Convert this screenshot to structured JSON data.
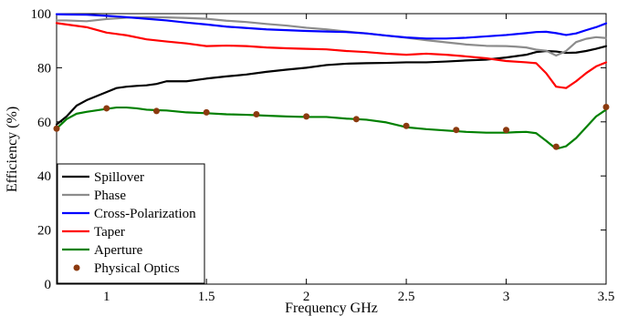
{
  "chart_data": {
    "type": "line",
    "xlabel": "Frequency GHz",
    "ylabel": "Efficiency (%)",
    "xlim": [
      0.75,
      3.5
    ],
    "ylim": [
      0,
      100
    ],
    "xticks": [
      1,
      1.5,
      2,
      2.5,
      3,
      3.5
    ],
    "xtick_labels": [
      "1",
      "1.5",
      "2",
      "2.5",
      "3",
      "3.5"
    ],
    "yticks": [
      0,
      20,
      40,
      60,
      80,
      100
    ],
    "ytick_labels": [
      "0",
      "20",
      "40",
      "60",
      "80",
      "100"
    ],
    "grid": false,
    "legend_position": "bottom-left",
    "series": [
      {
        "name": "Spillover",
        "color": "#000000",
        "style": "line",
        "x": [
          0.75,
          0.8,
          0.85,
          0.9,
          1.0,
          1.05,
          1.1,
          1.15,
          1.2,
          1.25,
          1.3,
          1.4,
          1.5,
          1.6,
          1.7,
          1.8,
          1.9,
          2.0,
          2.1,
          2.2,
          2.3,
          2.4,
          2.5,
          2.6,
          2.7,
          2.8,
          2.9,
          3.0,
          3.1,
          3.15,
          3.2,
          3.25,
          3.3,
          3.35,
          3.4,
          3.45,
          3.5
        ],
        "y": [
          59,
          62,
          66,
          68,
          71,
          72.5,
          73,
          73.3,
          73.5,
          74,
          75,
          75,
          76,
          76.8,
          77.5,
          78.5,
          79.3,
          80,
          81,
          81.5,
          81.7,
          81.8,
          82,
          82,
          82.3,
          82.7,
          83,
          83.8,
          84.8,
          85.8,
          86.2,
          86,
          85.5,
          85.6,
          86.2,
          87,
          88
        ]
      },
      {
        "name": "Phase",
        "color": "#8c8c8c",
        "style": "line",
        "x": [
          0.75,
          0.8,
          0.9,
          1.0,
          1.1,
          1.2,
          1.3,
          1.4,
          1.5,
          1.6,
          1.7,
          1.8,
          1.9,
          2.0,
          2.1,
          2.2,
          2.3,
          2.4,
          2.5,
          2.6,
          2.7,
          2.8,
          2.9,
          3.0,
          3.05,
          3.1,
          3.15,
          3.2,
          3.25,
          3.3,
          3.35,
          3.4,
          3.45,
          3.5
        ],
        "y": [
          97.5,
          97.5,
          97.2,
          98,
          98.5,
          98.7,
          98.6,
          98.4,
          98.1,
          97.4,
          96.9,
          96.2,
          95.6,
          94.8,
          94.2,
          93.4,
          92.7,
          91.9,
          91.1,
          90.2,
          89.4,
          88.6,
          88.1,
          88,
          87.8,
          87.5,
          86.7,
          86.3,
          84.5,
          86.2,
          89.5,
          90.7,
          91.3,
          91
        ]
      },
      {
        "name": "Cross-Polarization",
        "color": "#0000ff",
        "style": "line",
        "x": [
          0.75,
          0.8,
          0.9,
          1.0,
          1.1,
          1.2,
          1.3,
          1.4,
          1.5,
          1.6,
          1.7,
          1.8,
          1.9,
          2.0,
          2.1,
          2.2,
          2.3,
          2.4,
          2.5,
          2.6,
          2.7,
          2.8,
          2.9,
          3.0,
          3.1,
          3.15,
          3.2,
          3.25,
          3.3,
          3.35,
          3.4,
          3.45,
          3.5
        ],
        "y": [
          99.8,
          99.7,
          99.6,
          99.2,
          98.7,
          98.1,
          97.5,
          96.7,
          96,
          95.2,
          94.7,
          94.2,
          93.9,
          93.6,
          93.4,
          93.2,
          92.7,
          91.9,
          91.2,
          90.8,
          90.8,
          91.1,
          91.6,
          92.1,
          92.8,
          93.2,
          93.3,
          92.8,
          92.1,
          92.7,
          93.9,
          95,
          96.4
        ]
      },
      {
        "name": "Taper",
        "color": "#ff0000",
        "style": "line",
        "x": [
          0.75,
          0.8,
          0.9,
          1.0,
          1.1,
          1.2,
          1.3,
          1.4,
          1.5,
          1.6,
          1.7,
          1.8,
          1.9,
          2.0,
          2.1,
          2.2,
          2.3,
          2.4,
          2.5,
          2.6,
          2.7,
          2.8,
          2.9,
          3.0,
          3.1,
          3.15,
          3.2,
          3.25,
          3.3,
          3.35,
          3.4,
          3.45,
          3.5
        ],
        "y": [
          96.5,
          96,
          95,
          93,
          92,
          90.5,
          89.7,
          89,
          88,
          88.2,
          88,
          87.5,
          87.2,
          87,
          86.8,
          86.2,
          85.8,
          85.2,
          84.8,
          85.2,
          84.8,
          84.2,
          83.5,
          82.5,
          82,
          81.7,
          78,
          73,
          72.5,
          75,
          78,
          80.5,
          82
        ]
      },
      {
        "name": "Aperture",
        "color": "#008000",
        "style": "line",
        "x": [
          0.75,
          0.8,
          0.85,
          0.9,
          1.0,
          1.05,
          1.1,
          1.15,
          1.2,
          1.25,
          1.3,
          1.4,
          1.5,
          1.6,
          1.7,
          1.8,
          1.9,
          2.0,
          2.1,
          2.2,
          2.3,
          2.4,
          2.5,
          2.6,
          2.7,
          2.8,
          2.9,
          3.0,
          3.05,
          3.1,
          3.15,
          3.2,
          3.25,
          3.3,
          3.35,
          3.4,
          3.45,
          3.5
        ],
        "y": [
          57.5,
          61,
          63,
          63.7,
          64.8,
          65.3,
          65.3,
          65,
          64.5,
          64.3,
          64.2,
          63.5,
          63.2,
          62.8,
          62.6,
          62.3,
          62,
          61.8,
          61.8,
          61.2,
          60.8,
          59.8,
          58,
          57.3,
          56.8,
          56.3,
          56,
          56,
          56.2,
          56.3,
          55.8,
          53,
          50,
          51,
          54,
          58,
          62,
          64.5
        ]
      },
      {
        "name": "Physical Optics",
        "color": "#8b3a0f",
        "style": "markers",
        "x": [
          0.75,
          1.0,
          1.25,
          1.5,
          1.75,
          2.0,
          2.25,
          2.5,
          2.75,
          3.0,
          3.25,
          3.5
        ],
        "y": [
          57.5,
          65,
          64,
          63.5,
          62.8,
          62,
          61,
          58.5,
          57,
          57,
          50.8,
          65.5
        ]
      }
    ]
  }
}
